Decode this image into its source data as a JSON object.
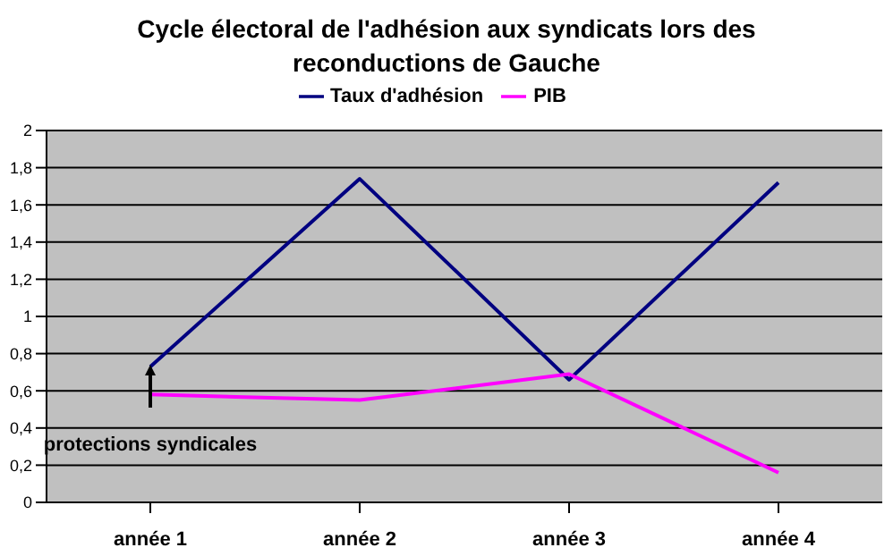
{
  "chart_data": {
    "type": "line",
    "title": "Cycle électoral de l'adhésion aux syndicats lors des reconductions de Gauche",
    "categories": [
      "année 1",
      "année 2",
      "année 3",
      "année 4"
    ],
    "series": [
      {
        "name": "Taux d'adhésion",
        "color": "#000080",
        "values": [
          0.73,
          1.74,
          0.66,
          1.72
        ]
      },
      {
        "name": "PIB",
        "color": "#ff00ff",
        "values": [
          0.58,
          0.55,
          0.69,
          0.16
        ]
      }
    ],
    "ylim": [
      0,
      2
    ],
    "yticks": [
      0,
      {
        "value": 0.2,
        "label": "0,2"
      },
      {
        "value": 0.4,
        "label": "0,4"
      },
      {
        "value": 0.6,
        "label": "0,6"
      },
      {
        "value": 0.8,
        "label": "0,8"
      },
      1,
      {
        "value": 1.2,
        "label": "1,2"
      },
      {
        "value": 1.4,
        "label": "1,4"
      },
      {
        "value": 1.6,
        "label": "1,6"
      },
      {
        "value": 1.8,
        "label": "1,8"
      },
      2
    ],
    "grid": "y",
    "legend": "top",
    "marker": "none",
    "line_style": "solid",
    "annotations": [
      "protections syndicales"
    ]
  }
}
